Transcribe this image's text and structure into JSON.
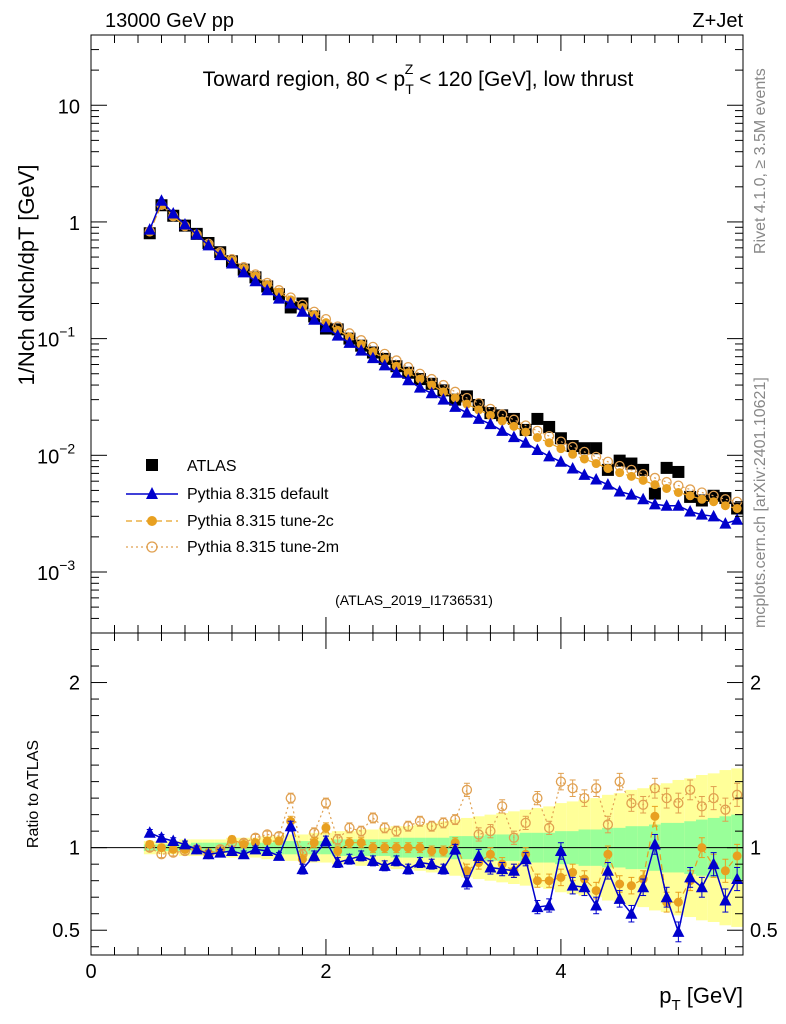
{
  "header": {
    "energy_label": "13000 GeV pp",
    "process_label": "Z+Jet",
    "rivet_label": "Rivet 4.1.0, ≥ 3.5M events",
    "mcplots_label": "mcplots.cern.ch [arXiv:2401.10621]",
    "analysis_id": "(ATLAS_2019_I1736531)"
  },
  "colors": {
    "data": "#000000",
    "default": "#0000cc",
    "tune2c": "#e8a020",
    "tune2m": "#e0a050",
    "band_outer": "#ffff99",
    "band_inner": "#99ff99"
  },
  "chart_data": [
    {
      "type": "scatter",
      "panel": "main",
      "title": "Toward region, 80 < pTZ < 120 [GeV], low thrust",
      "title_parts": {
        "pre": "Toward region, 80 < p",
        "sup": "Z",
        "sub": "T",
        "post": " < 120 [GeV], low thrust"
      },
      "ylabel": "1/Nch dNch/dpT [GeV]",
      "yscale": "log",
      "xlim": [
        0,
        5.55
      ],
      "ylim": [
        0.0003,
        40
      ],
      "y_ticks": [
        {
          "value": 0.001,
          "label": "10",
          "exp": "−3"
        },
        {
          "value": 0.01,
          "label": "10",
          "exp": "−2"
        },
        {
          "value": 0.1,
          "label": "10",
          "exp": "−1"
        },
        {
          "value": 1,
          "label": "1",
          "exp": ""
        },
        {
          "value": 10,
          "label": "10",
          "exp": ""
        }
      ],
      "legend": [
        "ATLAS",
        "Pythia 8.315 default",
        "Pythia 8.315 tune-2c",
        "Pythia 8.315 tune-2m"
      ],
      "x": [
        0.5,
        0.6,
        0.7,
        0.8,
        0.9,
        1.0,
        1.1,
        1.2,
        1.3,
        1.4,
        1.5,
        1.6,
        1.7,
        1.8,
        1.9,
        2.0,
        2.1,
        2.2,
        2.3,
        2.4,
        2.5,
        2.6,
        2.7,
        2.8,
        2.9,
        3.0,
        3.1,
        3.2,
        3.3,
        3.4,
        3.5,
        3.6,
        3.7,
        3.8,
        3.9,
        4.0,
        4.1,
        4.2,
        4.3,
        4.4,
        4.5,
        4.6,
        4.7,
        4.8,
        4.9,
        5.0,
        5.1,
        5.2,
        5.3,
        5.4,
        5.5
      ],
      "series": [
        {
          "name": "ATLAS",
          "marker": "square",
          "values": [
            0.8,
            1.39,
            1.13,
            0.93,
            0.79,
            0.66,
            0.55,
            0.46,
            0.39,
            0.335,
            0.28,
            0.24,
            0.185,
            0.2,
            0.155,
            0.122,
            0.12,
            0.1,
            0.087,
            0.076,
            0.067,
            0.058,
            0.051,
            0.045,
            0.041,
            0.036,
            0.03,
            0.032,
            0.027,
            0.023,
            0.022,
            0.0205,
            0.0165,
            0.0205,
            0.0175,
            0.014,
            0.012,
            0.0115,
            0.0115,
            0.0075,
            0.009,
            0.0085,
            0.0075,
            0.0047,
            0.0078,
            0.0072,
            0.0044,
            0.0041,
            0.0045,
            0.0043,
            0.0035
          ]
        },
        {
          "name": "Pythia 8.315 default",
          "marker": "triangle",
          "values": [
            0.86,
            1.52,
            1.18,
            0.95,
            0.78,
            0.63,
            0.52,
            0.44,
            0.37,
            0.31,
            0.26,
            0.22,
            0.2,
            0.17,
            0.145,
            0.125,
            0.106,
            0.092,
            0.079,
            0.068,
            0.059,
            0.051,
            0.044,
            0.038,
            0.034,
            0.03,
            0.026,
            0.0232,
            0.0205,
            0.0185,
            0.0162,
            0.0143,
            0.0128,
            0.0111,
            0.0098,
            0.0088,
            0.0077,
            0.0068,
            0.0062,
            0.0056,
            0.0049,
            0.0046,
            0.0042,
            0.0038,
            0.0037,
            0.0037,
            0.0033,
            0.0031,
            0.003,
            0.0026,
            0.0028
          ]
        },
        {
          "name": "Pythia 8.315 tune-2c",
          "marker": "circle",
          "values": [
            0.82,
            1.41,
            1.12,
            0.92,
            0.78,
            0.64,
            0.54,
            0.47,
            0.4,
            0.345,
            0.29,
            0.25,
            0.215,
            0.185,
            0.16,
            0.137,
            0.118,
            0.103,
            0.089,
            0.077,
            0.067,
            0.058,
            0.051,
            0.045,
            0.04,
            0.035,
            0.031,
            0.0275,
            0.0245,
            0.022,
            0.0197,
            0.0177,
            0.0158,
            0.0142,
            0.0128,
            0.0114,
            0.0102,
            0.0093,
            0.0085,
            0.0077,
            0.0071,
            0.0066,
            0.0061,
            0.0056,
            0.0052,
            0.0048,
            0.0045,
            0.0042,
            0.004,
            0.0037,
            0.0035
          ]
        },
        {
          "name": "Pythia 8.315 tune-2m",
          "marker": "open-circle",
          "values": [
            0.83,
            1.4,
            1.12,
            0.92,
            0.78,
            0.65,
            0.55,
            0.48,
            0.41,
            0.355,
            0.3,
            0.26,
            0.225,
            0.195,
            0.17,
            0.147,
            0.127,
            0.111,
            0.097,
            0.085,
            0.074,
            0.065,
            0.057,
            0.05,
            0.045,
            0.04,
            0.035,
            0.031,
            0.028,
            0.025,
            0.0224,
            0.0202,
            0.018,
            0.0162,
            0.0146,
            0.0131,
            0.0118,
            0.0107,
            0.0097,
            0.0088,
            0.0081,
            0.0075,
            0.0069,
            0.0064,
            0.0059,
            0.0055,
            0.0051,
            0.0048,
            0.0045,
            0.0042,
            0.004
          ]
        }
      ]
    },
    {
      "type": "scatter",
      "panel": "ratio",
      "ylabel": "Ratio to ATLAS",
      "xlabel": "pT [GeV]",
      "xlabel_parts": {
        "pre": "p",
        "sub": "T",
        "post": " [GeV]"
      },
      "xlim": [
        0,
        5.55
      ],
      "ylim": [
        0.35,
        2.3
      ],
      "x_ticks": [
        {
          "value": 0,
          "label": "0"
        },
        {
          "value": 2,
          "label": "2"
        },
        {
          "value": 4,
          "label": "4"
        }
      ],
      "y_ticks": [
        {
          "value": 0.5,
          "label": "0.5"
        },
        {
          "value": 1,
          "label": "1"
        },
        {
          "value": 2,
          "label": "2"
        }
      ],
      "reference_line": 1,
      "x": [
        0.5,
        0.6,
        0.7,
        0.8,
        0.9,
        1.0,
        1.1,
        1.2,
        1.3,
        1.4,
        1.5,
        1.6,
        1.7,
        1.8,
        1.9,
        2.0,
        2.1,
        2.2,
        2.3,
        2.4,
        2.5,
        2.6,
        2.7,
        2.8,
        2.9,
        3.0,
        3.1,
        3.2,
        3.3,
        3.4,
        3.5,
        3.6,
        3.7,
        3.8,
        3.9,
        4.0,
        4.1,
        4.2,
        4.3,
        4.4,
        4.5,
        4.6,
        4.7,
        4.8,
        4.9,
        5.0,
        5.1,
        5.2,
        5.3,
        5.4,
        5.5
      ],
      "band_inner_halfwidth": [
        0.02,
        0.02,
        0.02,
        0.02,
        0.03,
        0.03,
        0.03,
        0.03,
        0.03,
        0.03,
        0.03,
        0.04,
        0.04,
        0.04,
        0.04,
        0.04,
        0.05,
        0.05,
        0.05,
        0.05,
        0.05,
        0.06,
        0.06,
        0.06,
        0.06,
        0.06,
        0.07,
        0.07,
        0.07,
        0.08,
        0.08,
        0.08,
        0.09,
        0.09,
        0.09,
        0.1,
        0.1,
        0.11,
        0.11,
        0.12,
        0.12,
        0.13,
        0.13,
        0.14,
        0.15,
        0.15,
        0.16,
        0.17,
        0.18,
        0.19,
        0.2
      ],
      "band_outer_halfwidth": [
        0.04,
        0.04,
        0.04,
        0.05,
        0.05,
        0.05,
        0.05,
        0.06,
        0.06,
        0.06,
        0.07,
        0.07,
        0.08,
        0.08,
        0.09,
        0.09,
        0.1,
        0.1,
        0.11,
        0.11,
        0.12,
        0.13,
        0.13,
        0.14,
        0.15,
        0.16,
        0.17,
        0.18,
        0.19,
        0.2,
        0.21,
        0.22,
        0.23,
        0.24,
        0.25,
        0.27,
        0.28,
        0.29,
        0.3,
        0.32,
        0.33,
        0.35,
        0.36,
        0.38,
        0.39,
        0.41,
        0.42,
        0.44,
        0.45,
        0.47,
        0.48
      ],
      "series": [
        {
          "name": "Pythia 8.315 default",
          "marker": "triangle",
          "values": [
            1.09,
            1.06,
            1.04,
            1.02,
            0.99,
            0.96,
            0.97,
            0.98,
            0.96,
            0.99,
            0.98,
            0.95,
            1.13,
            0.87,
            0.95,
            1.04,
            0.91,
            0.93,
            0.95,
            0.92,
            0.89,
            0.92,
            0.87,
            0.91,
            0.9,
            0.87,
            0.99,
            0.79,
            0.95,
            0.88,
            0.87,
            0.86,
            0.93,
            0.64,
            0.65,
            0.98,
            0.77,
            0.76,
            0.65,
            0.86,
            0.69,
            0.6,
            0.76,
            1.02,
            0.7,
            0.49,
            0.82,
            0.76,
            0.9,
            0.68,
            0.81
          ],
          "errors": [
            0.02,
            0.02,
            0.02,
            0.02,
            0.02,
            0.02,
            0.02,
            0.02,
            0.02,
            0.02,
            0.02,
            0.02,
            0.03,
            0.03,
            0.03,
            0.03,
            0.03,
            0.03,
            0.03,
            0.03,
            0.03,
            0.03,
            0.03,
            0.03,
            0.03,
            0.03,
            0.03,
            0.04,
            0.04,
            0.04,
            0.04,
            0.04,
            0.04,
            0.04,
            0.04,
            0.05,
            0.05,
            0.05,
            0.05,
            0.05,
            0.05,
            0.05,
            0.05,
            0.06,
            0.06,
            0.06,
            0.06,
            0.06,
            0.07,
            0.07,
            0.07
          ]
        },
        {
          "name": "Pythia 8.315 tune-2c",
          "marker": "circle",
          "values": [
            1.02,
            1.0,
            0.99,
            0.99,
            0.99,
            0.97,
            0.98,
            1.05,
            1.02,
            1.03,
            1.04,
            1.04,
            1.16,
            0.93,
            1.03,
            1.12,
            0.98,
            1.03,
            1.03,
            1.0,
            1.0,
            1.0,
            1.0,
            1.0,
            0.98,
            0.98,
            1.03,
            0.86,
            0.91,
            0.96,
            0.9,
            0.86,
            0.96,
            0.8,
            0.8,
            0.82,
            0.85,
            0.81,
            0.74,
            0.96,
            0.78,
            0.77,
            0.81,
            1.19,
            0.67,
            0.67,
            0.8,
            1.0,
            0.89,
            0.86,
            0.95
          ],
          "errors": [
            0.02,
            0.02,
            0.02,
            0.02,
            0.02,
            0.02,
            0.02,
            0.02,
            0.02,
            0.02,
            0.02,
            0.02,
            0.03,
            0.03,
            0.03,
            0.03,
            0.03,
            0.03,
            0.03,
            0.03,
            0.03,
            0.03,
            0.03,
            0.03,
            0.03,
            0.03,
            0.03,
            0.04,
            0.04,
            0.04,
            0.04,
            0.04,
            0.04,
            0.04,
            0.04,
            0.05,
            0.05,
            0.05,
            0.05,
            0.05,
            0.05,
            0.05,
            0.05,
            0.06,
            0.06,
            0.06,
            0.06,
            0.06,
            0.07,
            0.07,
            0.07
          ]
        },
        {
          "name": "Pythia 8.315 tune-2m",
          "marker": "open-circle",
          "values": [
            1.0,
            0.96,
            0.97,
            0.98,
            0.99,
            0.96,
            0.99,
            1.03,
            1.03,
            1.06,
            1.08,
            1.07,
            1.3,
            0.96,
            1.09,
            1.27,
            1.05,
            1.12,
            1.1,
            1.18,
            1.12,
            1.1,
            1.13,
            1.16,
            1.13,
            1.15,
            1.17,
            1.35,
            1.08,
            1.1,
            1.25,
            1.06,
            1.15,
            1.3,
            1.12,
            1.4,
            1.36,
            1.3,
            1.36,
            1.14,
            1.4,
            1.27,
            1.26,
            1.36,
            1.3,
            1.27,
            1.35,
            1.25,
            1.3,
            1.23,
            1.32
          ],
          "errors": [
            0.02,
            0.02,
            0.02,
            0.02,
            0.02,
            0.02,
            0.02,
            0.02,
            0.02,
            0.02,
            0.02,
            0.02,
            0.03,
            0.03,
            0.03,
            0.03,
            0.03,
            0.03,
            0.03,
            0.03,
            0.03,
            0.03,
            0.03,
            0.03,
            0.03,
            0.03,
            0.03,
            0.04,
            0.04,
            0.04,
            0.04,
            0.04,
            0.04,
            0.04,
            0.04,
            0.05,
            0.05,
            0.05,
            0.05,
            0.05,
            0.05,
            0.05,
            0.05,
            0.06,
            0.06,
            0.06,
            0.06,
            0.06,
            0.07,
            0.07,
            0.07
          ]
        }
      ]
    }
  ]
}
